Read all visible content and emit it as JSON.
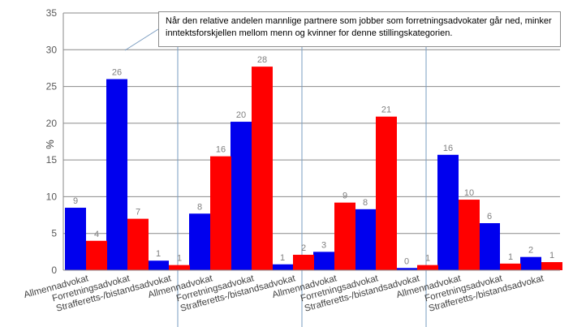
{
  "chart_data": {
    "type": "bar",
    "ylabel": "%",
    "ylim": [
      0,
      35
    ],
    "yticks": [
      0,
      5,
      10,
      15,
      20,
      25,
      30,
      35
    ],
    "grid": true,
    "colors": {
      "blue": "#0000ee",
      "red": "#ff0000"
    },
    "annotation": "Når den relative andelen mannlige partnere som jobber som forretningsadvokater går ned, minker inntektsforskjellen mellom menn og kvinner for denne stillingskategorien.",
    "categories": [
      "Allmennadvokat",
      "Forretningsadvokat",
      "Strafferetts-/bistandsadvokat",
      "Allmennadvokat",
      "Forretningsadvokat",
      "Strafferetts-/bistandsadvokat",
      "Allmennadvokat",
      "Forretningsadvokat",
      "Strafferetts-/bistandsadvokat",
      "Allmennadvokat",
      "Forretningsadvokat",
      "Strafferetts-/bistandsadvokat"
    ],
    "series": [
      {
        "color": "#0000ee",
        "values": [
          8.5,
          26.0,
          1.3,
          7.7,
          20.2,
          0.8,
          2.5,
          8.3,
          0.3,
          15.7,
          6.4,
          1.8
        ],
        "labels": [
          "9",
          "26",
          "1",
          "8",
          "20",
          "1",
          "3",
          "8",
          "0",
          "16",
          "6",
          "2"
        ]
      },
      {
        "color": "#ff0000",
        "values": [
          4.0,
          7.0,
          0.7,
          15.5,
          27.7,
          2.1,
          9.2,
          20.9,
          0.7,
          9.6,
          0.9,
          1.1
        ],
        "labels": [
          "4",
          "7",
          "1",
          "16",
          "28",
          "2",
          "9",
          "21",
          "1",
          "10",
          "1",
          "1"
        ]
      }
    ]
  }
}
